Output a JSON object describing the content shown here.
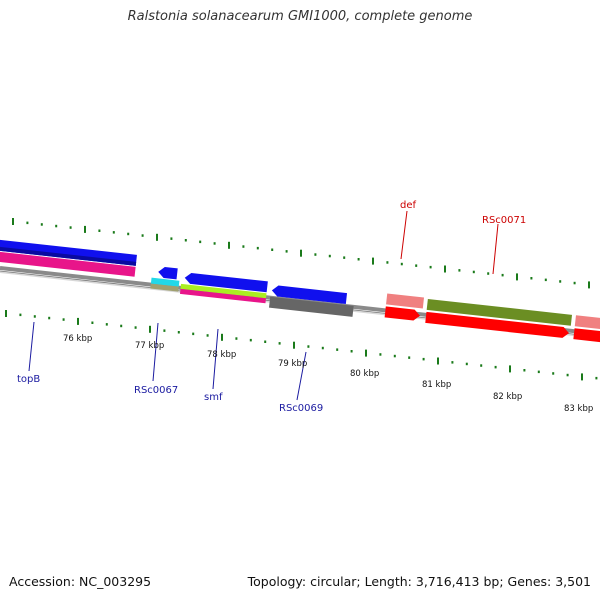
{
  "title": "Ralstonia solanacearum GMI1000, complete genome",
  "footer": {
    "accession": "Accession: NC_003295",
    "summary": "Topology: circular; Length: 3,716,413 bp; Genes: 3,501"
  },
  "ticks": [
    "76 kbp",
    "77 kbp",
    "78 kbp",
    "79 kbp",
    "80 kbp",
    "81 kbp",
    "82 kbp",
    "83 kbp"
  ],
  "gene_labels": [
    {
      "text": "topB",
      "color": "#1a1aa0"
    },
    {
      "text": "RSc0067",
      "color": "#1a1aa0"
    },
    {
      "text": "smf",
      "color": "#1a1aa0"
    },
    {
      "text": "RSc0069",
      "color": "#1a1aa0"
    },
    {
      "text": "def",
      "color": "#cc0000"
    },
    {
      "text": "RSc0071",
      "color": "#cc0000"
    }
  ],
  "colors": {
    "forward_cds": "#1010ee",
    "reverse_cds": "#e8158a",
    "red_cds": "#ff0000",
    "pink_cds": "#f08080",
    "olive_cds": "#6b8e23",
    "gray_cds": "#666666",
    "cyan_cds": "#22d8e8",
    "lime_cds": "#aaee22",
    "tan_cds": "#a0a070",
    "tick": "#1a7a1a"
  }
}
